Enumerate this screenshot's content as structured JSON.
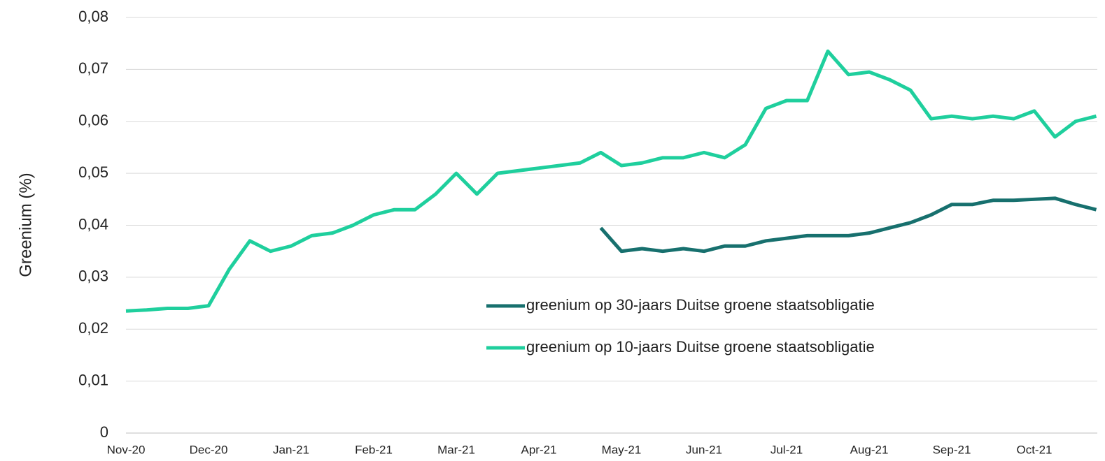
{
  "chart_data": {
    "type": "line",
    "y_label": "Greenium (%)",
    "categories": [
      "Nov-20",
      null,
      null,
      null,
      "Dec-20",
      null,
      null,
      null,
      "Jan-21",
      null,
      null,
      null,
      "Feb-21",
      null,
      null,
      null,
      "Mar-21",
      null,
      null,
      null,
      "Apr-21",
      null,
      null,
      null,
      "May-21",
      null,
      null,
      null,
      "Jun-21",
      null,
      null,
      null,
      "Jul-21",
      null,
      null,
      null,
      "Aug-21",
      null,
      null,
      null,
      "Sep-21",
      null,
      null,
      null,
      "Oct-21",
      null,
      null,
      null
    ],
    "series": [
      {
        "name": "greenium op 30-jaars Duitse groene staatsobligatie",
        "color": "#17706e",
        "values": [
          null,
          null,
          null,
          null,
          null,
          null,
          null,
          null,
          null,
          null,
          null,
          null,
          null,
          null,
          null,
          null,
          null,
          null,
          null,
          null,
          null,
          null,
          null,
          0.0395,
          0.035,
          0.0355,
          0.035,
          0.0355,
          0.035,
          0.036,
          0.036,
          0.037,
          0.0375,
          0.038,
          0.038,
          0.038,
          0.0385,
          0.0395,
          0.0405,
          0.042,
          0.044,
          0.044,
          0.0448,
          0.0448,
          0.045,
          0.0452,
          0.044,
          0.043
        ]
      },
      {
        "name": "greenium op 10-jaars Duitse groene staatsobligatie",
        "color": "#1fcf9d",
        "values": [
          0.0235,
          0.0237,
          0.024,
          0.024,
          0.0245,
          0.0315,
          0.037,
          0.035,
          0.036,
          0.038,
          0.0385,
          0.04,
          0.042,
          0.043,
          0.043,
          0.046,
          0.05,
          0.046,
          0.05,
          0.0505,
          0.051,
          0.0515,
          0.052,
          0.054,
          0.0515,
          0.052,
          0.053,
          0.053,
          0.054,
          0.053,
          0.0555,
          0.0625,
          0.064,
          0.064,
          0.0735,
          0.069,
          0.0695,
          0.068,
          0.066,
          0.0605,
          0.061,
          0.0605,
          0.061,
          0.0605,
          0.062,
          0.057,
          0.06,
          0.061
        ]
      }
    ],
    "ylim": [
      0,
      0.08
    ],
    "yticks": [
      0,
      {
        "value": 0.01,
        "label": "0,01"
      },
      {
        "value": 0.02,
        "label": "0,02"
      },
      {
        "value": 0.03,
        "label": "0,03"
      },
      {
        "value": 0.04,
        "label": "0,04"
      },
      {
        "value": 0.05,
        "label": "0,05"
      },
      {
        "value": 0.06,
        "label": "0,06"
      },
      {
        "value": 0.07,
        "label": "0,07"
      },
      {
        "value": 0.08,
        "label": "0,08"
      }
    ],
    "grid": true,
    "legend": "center"
  }
}
